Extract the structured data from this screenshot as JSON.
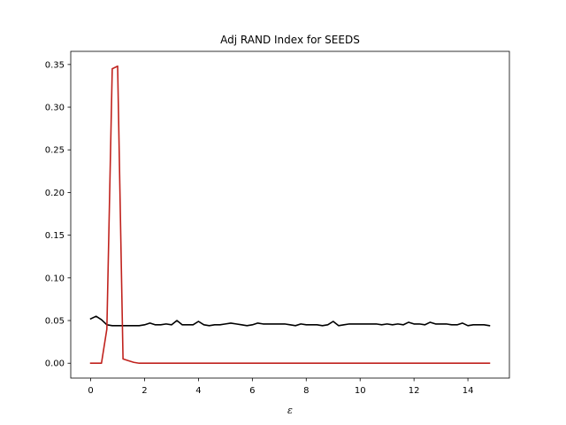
{
  "chart_data": {
    "type": "line",
    "title": "Adj RAND Index for SEEDS",
    "xlabel": "ε",
    "ylabel": "",
    "xlim": [
      -0.74,
      15.54
    ],
    "ylim": [
      -0.0174,
      0.3654
    ],
    "x_ticks": [
      0,
      2,
      4,
      6,
      8,
      10,
      12,
      14
    ],
    "x_tick_labels": [
      "0",
      "2",
      "4",
      "6",
      "8",
      "10",
      "12",
      "14"
    ],
    "y_ticks": [
      0.0,
      0.05,
      0.1,
      0.15,
      0.2,
      0.25,
      0.3,
      0.35
    ],
    "y_tick_labels": [
      "0.00",
      "0.05",
      "0.10",
      "0.15",
      "0.20",
      "0.25",
      "0.30",
      "0.35"
    ],
    "grid": false,
    "legend": "none",
    "series": [
      {
        "color": "#000000",
        "x": [
          0,
          0.2,
          0.4,
          0.6,
          0.8,
          1.0,
          1.2,
          1.4,
          1.6,
          1.8,
          2.0,
          2.2,
          2.4,
          2.6,
          2.8,
          3.0,
          3.2,
          3.4,
          3.6,
          3.8,
          4.0,
          4.2,
          4.4,
          4.6,
          4.8,
          5.0,
          5.2,
          5.4,
          5.6,
          5.8,
          6.0,
          6.2,
          6.4,
          6.6,
          6.8,
          7.0,
          7.2,
          7.4,
          7.6,
          7.8,
          8.0,
          8.2,
          8.4,
          8.6,
          8.8,
          9.0,
          9.2,
          9.4,
          9.6,
          9.8,
          10.0,
          10.2,
          10.4,
          10.6,
          10.8,
          11.0,
          11.2,
          11.4,
          11.6,
          11.8,
          12.0,
          12.2,
          12.4,
          12.6,
          12.8,
          13.0,
          13.2,
          13.4,
          13.6,
          13.8,
          14.0,
          14.2,
          14.4,
          14.6,
          14.8
        ],
        "values": [
          0.052,
          0.055,
          0.051,
          0.045,
          0.044,
          0.044,
          0.044,
          0.044,
          0.044,
          0.044,
          0.045,
          0.047,
          0.045,
          0.045,
          0.046,
          0.045,
          0.05,
          0.045,
          0.045,
          0.045,
          0.049,
          0.045,
          0.044,
          0.045,
          0.045,
          0.046,
          0.047,
          0.046,
          0.045,
          0.044,
          0.045,
          0.047,
          0.046,
          0.046,
          0.046,
          0.046,
          0.046,
          0.045,
          0.044,
          0.046,
          0.045,
          0.045,
          0.045,
          0.044,
          0.045,
          0.049,
          0.044,
          0.045,
          0.046,
          0.046,
          0.046,
          0.046,
          0.046,
          0.046,
          0.045,
          0.046,
          0.045,
          0.046,
          0.045,
          0.048,
          0.046,
          0.046,
          0.045,
          0.048,
          0.046,
          0.046,
          0.046,
          0.045,
          0.045,
          0.047,
          0.044,
          0.045,
          0.045,
          0.045,
          0.044
        ]
      },
      {
        "color": "#c0221d",
        "x": [
          0,
          0.2,
          0.4,
          0.6,
          0.8,
          1.0,
          1.2,
          1.4,
          1.6,
          1.8,
          2.0,
          3.0,
          4.0,
          5.0,
          6.0,
          7.0,
          8.0,
          9.0,
          10.0,
          11.0,
          12.0,
          13.0,
          14.0,
          14.8
        ],
        "values": [
          0.0,
          0.0,
          0.0,
          0.04,
          0.345,
          0.348,
          0.005,
          0.003,
          0.001,
          0.0,
          0.0,
          0.0,
          0.0,
          0.0,
          0.0,
          0.0,
          0.0,
          0.0,
          0.0,
          0.0,
          0.0,
          0.0,
          0.0,
          0.0
        ]
      }
    ]
  }
}
